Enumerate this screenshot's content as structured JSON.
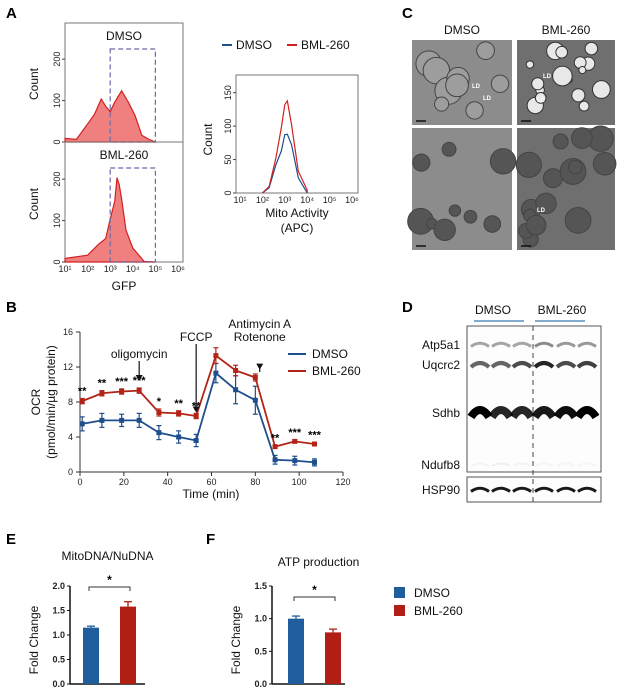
{
  "panels": {
    "A": "A",
    "B": "B",
    "C": "C",
    "D": "D",
    "E": "E",
    "F": "F"
  },
  "colors": {
    "dmso": "#1f4e8c",
    "bml": "#b22418",
    "hist_fill": "#f08080",
    "hist_line": "#d22020",
    "gate": "#6a6aa8"
  },
  "panel_c": {
    "col_labels": [
      "DMSO",
      "BML-260"
    ],
    "image_markers": [
      "LD",
      "LD",
      "LD",
      "LD",
      "LD"
    ]
  },
  "panel_d": {
    "group_labels": [
      "DMSO",
      "BML-260"
    ],
    "bands": [
      "Atp5a1",
      "Uqcrc2",
      "Sdhb",
      "Ndufb8"
    ],
    "loading": "HSP90"
  },
  "legend_ef": [
    "DMSO",
    "BML-260"
  ],
  "chart_data": [
    {
      "id": "gfp_dmso",
      "type": "histogram",
      "title": "DMSO",
      "xlabel": "GFP",
      "ylabel": "Count",
      "x_scale": "log",
      "xlim": [
        10,
        1000000
      ],
      "ylim": [
        0,
        280
      ],
      "xticks": [
        "10¹",
        "10²",
        "10³",
        "10⁴",
        "10⁵",
        "10⁶"
      ],
      "yticks": [
        0,
        100,
        200
      ],
      "gate": [
        1000,
        100000
      ],
      "x": [
        10,
        32,
        100,
        200,
        400,
        630,
        1000,
        1600,
        3200,
        6300,
        12600,
        25000,
        50000,
        100000
      ],
      "values": [
        5,
        10,
        40,
        70,
        100,
        90,
        70,
        100,
        120,
        100,
        60,
        20,
        3,
        0
      ]
    },
    {
      "id": "gfp_bml",
      "type": "histogram",
      "title": "BML-260",
      "xlabel": "GFP",
      "ylabel": "Count",
      "x_scale": "log",
      "xlim": [
        10,
        1000000
      ],
      "ylim": [
        0,
        280
      ],
      "xticks": [
        "10¹",
        "10²",
        "10³",
        "10⁴",
        "10⁵",
        "10⁶"
      ],
      "yticks": [
        0,
        100,
        200
      ],
      "gate": [
        1000,
        100000
      ],
      "x": [
        10,
        100,
        316,
        631,
        1000,
        1585,
        2000,
        2512,
        3162,
        5012,
        10000,
        31623,
        100000
      ],
      "values": [
        5,
        20,
        40,
        60,
        100,
        150,
        200,
        190,
        150,
        80,
        30,
        5,
        0
      ]
    },
    {
      "id": "mito",
      "type": "histogram",
      "xlabel": "Mito Activity",
      "xlabel2": "(APC)",
      "ylabel": "Count",
      "x_scale": "log",
      "xlim": [
        10,
        1000000
      ],
      "ylim": [
        0,
        160
      ],
      "xticks": [
        "10¹",
        "10²",
        "10³",
        "10⁴",
        "10⁵",
        "10⁶"
      ],
      "yticks": [
        0,
        50,
        100,
        150
      ],
      "legend": "top",
      "series": [
        {
          "name": "DMSO",
          "x": [
            100,
            200,
            400,
            700,
            1000,
            1300,
            2000,
            4000,
            10000
          ],
          "values": [
            0,
            10,
            40,
            65,
            85,
            90,
            70,
            25,
            0
          ]
        },
        {
          "name": "BML-260",
          "x": [
            100,
            200,
            400,
            700,
            1000,
            1300,
            2000,
            4000,
            10000
          ],
          "values": [
            0,
            12,
            50,
            100,
            130,
            140,
            100,
            35,
            2
          ]
        }
      ]
    },
    {
      "id": "ocr",
      "type": "line",
      "xlabel": "Time (min)",
      "ylabel": "OCR",
      "ylabel2": "(pmol/min/µg protein)",
      "xlim": [
        0,
        120
      ],
      "ylim": [
        0,
        16
      ],
      "xticks": [
        0,
        20,
        40,
        60,
        80,
        100,
        120
      ],
      "yticks": [
        0,
        4,
        8,
        12,
        16
      ],
      "legend": "right",
      "x": [
        1,
        10,
        19,
        27,
        36,
        45,
        53,
        62,
        71,
        80,
        89,
        98,
        107
      ],
      "series": [
        {
          "name": "DMSO",
          "values": [
            5.5,
            5.9,
            5.9,
            5.9,
            4.5,
            4.0,
            3.6,
            11.3,
            9.4,
            8.2,
            1.4,
            1.3,
            1.1
          ],
          "errors": [
            0.8,
            0.8,
            0.7,
            0.8,
            0.8,
            0.7,
            0.7,
            1.1,
            1.6,
            1.6,
            0.5,
            0.5,
            0.4
          ]
        },
        {
          "name": "BML-260",
          "values": [
            8.1,
            9.0,
            9.2,
            9.3,
            6.8,
            6.7,
            6.4,
            13.3,
            11.6,
            10.8,
            2.9,
            3.5,
            3.2
          ],
          "errors": [
            0.3,
            0.3,
            0.3,
            0.3,
            0.4,
            0.3,
            0.3,
            0.9,
            0.6,
            0.4,
            0.15,
            0.15,
            0.15
          ]
        }
      ],
      "significance": [
        "**",
        "**",
        "***",
        "***",
        "*",
        "**",
        "**",
        "",
        "",
        "",
        "**",
        "***",
        "***"
      ],
      "annotations": [
        {
          "x": 27,
          "lines": [
            "oligomycin"
          ]
        },
        {
          "x": 53,
          "lines": [
            "FCCP"
          ]
        },
        {
          "x": 82,
          "lines": [
            "Antimycin A",
            "Rotenone"
          ]
        }
      ]
    },
    {
      "id": "mtdna",
      "type": "bar",
      "title": "MitoDNA/NuDNA",
      "ylabel": "Fold Change",
      "ylim": [
        0,
        2.0
      ],
      "yticks": [
        "0.0",
        "0.5",
        "1.0",
        "1.5",
        "2.0"
      ],
      "categories": [
        "DMSO",
        "BML-260"
      ],
      "values": [
        1.15,
        1.58
      ],
      "errors": [
        0.03,
        0.1
      ],
      "significance": "*"
    },
    {
      "id": "atp",
      "type": "bar",
      "title": "ATP production",
      "ylabel": "Fold Change",
      "ylim": [
        0,
        1.5
      ],
      "yticks": [
        "0.0",
        "0.5",
        "1.0",
        "1.5"
      ],
      "categories": [
        "DMSO",
        "BML-260"
      ],
      "values": [
        1.0,
        0.79
      ],
      "errors": [
        0.04,
        0.05
      ],
      "significance": "*"
    }
  ]
}
